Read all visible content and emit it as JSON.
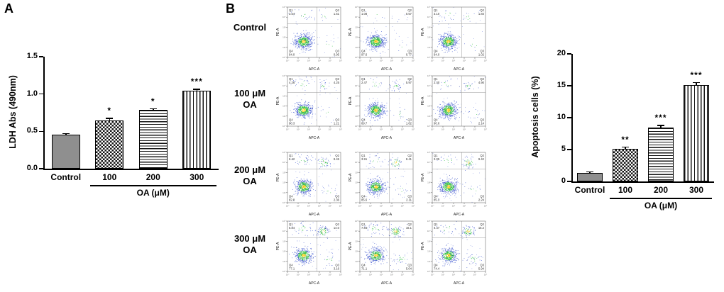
{
  "figure": {
    "panel_a": "A",
    "panel_b": "B"
  },
  "chart_data": [
    {
      "id": "ldh",
      "type": "bar",
      "title": "",
      "ylabel": "LDH Abs (490nm)",
      "xlabel": "OA (μM)",
      "categories": [
        "Control",
        "100",
        "200",
        "300"
      ],
      "values": [
        0.46,
        0.65,
        0.79,
        1.04
      ],
      "errors": [
        0.015,
        0.03,
        0.02,
        0.03
      ],
      "significance": [
        "",
        "*",
        "*",
        "***"
      ],
      "ylim": [
        0,
        1.5
      ],
      "yticks": [
        0,
        0.5,
        1,
        1.5
      ],
      "ytick_labels": [
        "0.0",
        "0.5",
        "1.0",
        "1.5"
      ],
      "patterns": [
        "solid",
        "checker",
        "hlines",
        "vlines"
      ]
    },
    {
      "id": "apoptosis",
      "type": "bar",
      "title": "",
      "ylabel": "Apoptosis cells (%)",
      "xlabel": "OA (μM)",
      "categories": [
        "Control",
        "100",
        "200",
        "300"
      ],
      "values": [
        1.3,
        5.1,
        8.5,
        15.1
      ],
      "errors": [
        0.3,
        0.4,
        0.35,
        0.5
      ],
      "significance": [
        "",
        "**",
        "***",
        "***"
      ],
      "ylim": [
        0,
        20
      ],
      "yticks": [
        0,
        5,
        10,
        15,
        20
      ],
      "ytick_labels": [
        "0",
        "5",
        "10",
        "15",
        "20"
      ],
      "patterns": [
        "solid",
        "checker",
        "hlines",
        "vlines"
      ]
    }
  ],
  "flow_panel": {
    "x_axis_label": "APC-A",
    "y_axis_label": "PE-A",
    "quadrant_names": [
      "Q1",
      "Q2",
      "Q3",
      "Q4"
    ],
    "rows": [
      {
        "label_line1": "Control",
        "label_line2": "",
        "plots": [
          {
            "q1": "3.54",
            "q2": "1.51",
            "q3": "0.95",
            "q4": "94.0"
          },
          {
            "q1": "1.08",
            "q2": "0.57",
            "q3": "0.77",
            "q4": "97.6"
          },
          {
            "q1": "3.10",
            "q2": "1.84",
            "q3": "1.02",
            "q4": "94.0"
          }
        ]
      },
      {
        "label_line1": "100 μM",
        "label_line2": "OA",
        "plots": [
          {
            "q1": "4.26",
            "q2": "4.25",
            "q3": "1.21",
            "q4": "90.3"
          },
          {
            "q1": "2.47",
            "q2": "5.97",
            "q3": "1.82",
            "q4": "89.7"
          },
          {
            "q1": "2.40",
            "q2": "4.90",
            "q3": "2.14",
            "q4": "90.6"
          }
        ]
      },
      {
        "label_line1": "200 μM",
        "label_line2": "OA",
        "plots": [
          {
            "q1": "6.42",
            "q2": "8.45",
            "q3": "2.36",
            "q4": "82.8"
          },
          {
            "q1": "3.91",
            "q2": "8.41",
            "q3": "2.11",
            "q4": "85.6"
          },
          {
            "q1": "3.05",
            "q2": "9.42",
            "q3": "2.24",
            "q4": "85.3"
          }
        ]
      },
      {
        "label_line1": "300 μM",
        "label_line2": "OA",
        "plots": [
          {
            "q1": "5.84",
            "q2": "14.0",
            "q3": "3.16",
            "q4": "77.1"
          },
          {
            "q1": "7.84",
            "q2": "16.1",
            "q3": "5.04",
            "q4": "71.1"
          },
          {
            "q1": "4.47",
            "q2": "15.2",
            "q3": "5.94",
            "q4": "74.4"
          }
        ]
      }
    ]
  },
  "colors": {
    "dot_outer": "#3c55cf",
    "dot_mid": "#2fbf3f",
    "dot_core": "#ffd21f",
    "bar_solid": "#8f8f8f"
  }
}
